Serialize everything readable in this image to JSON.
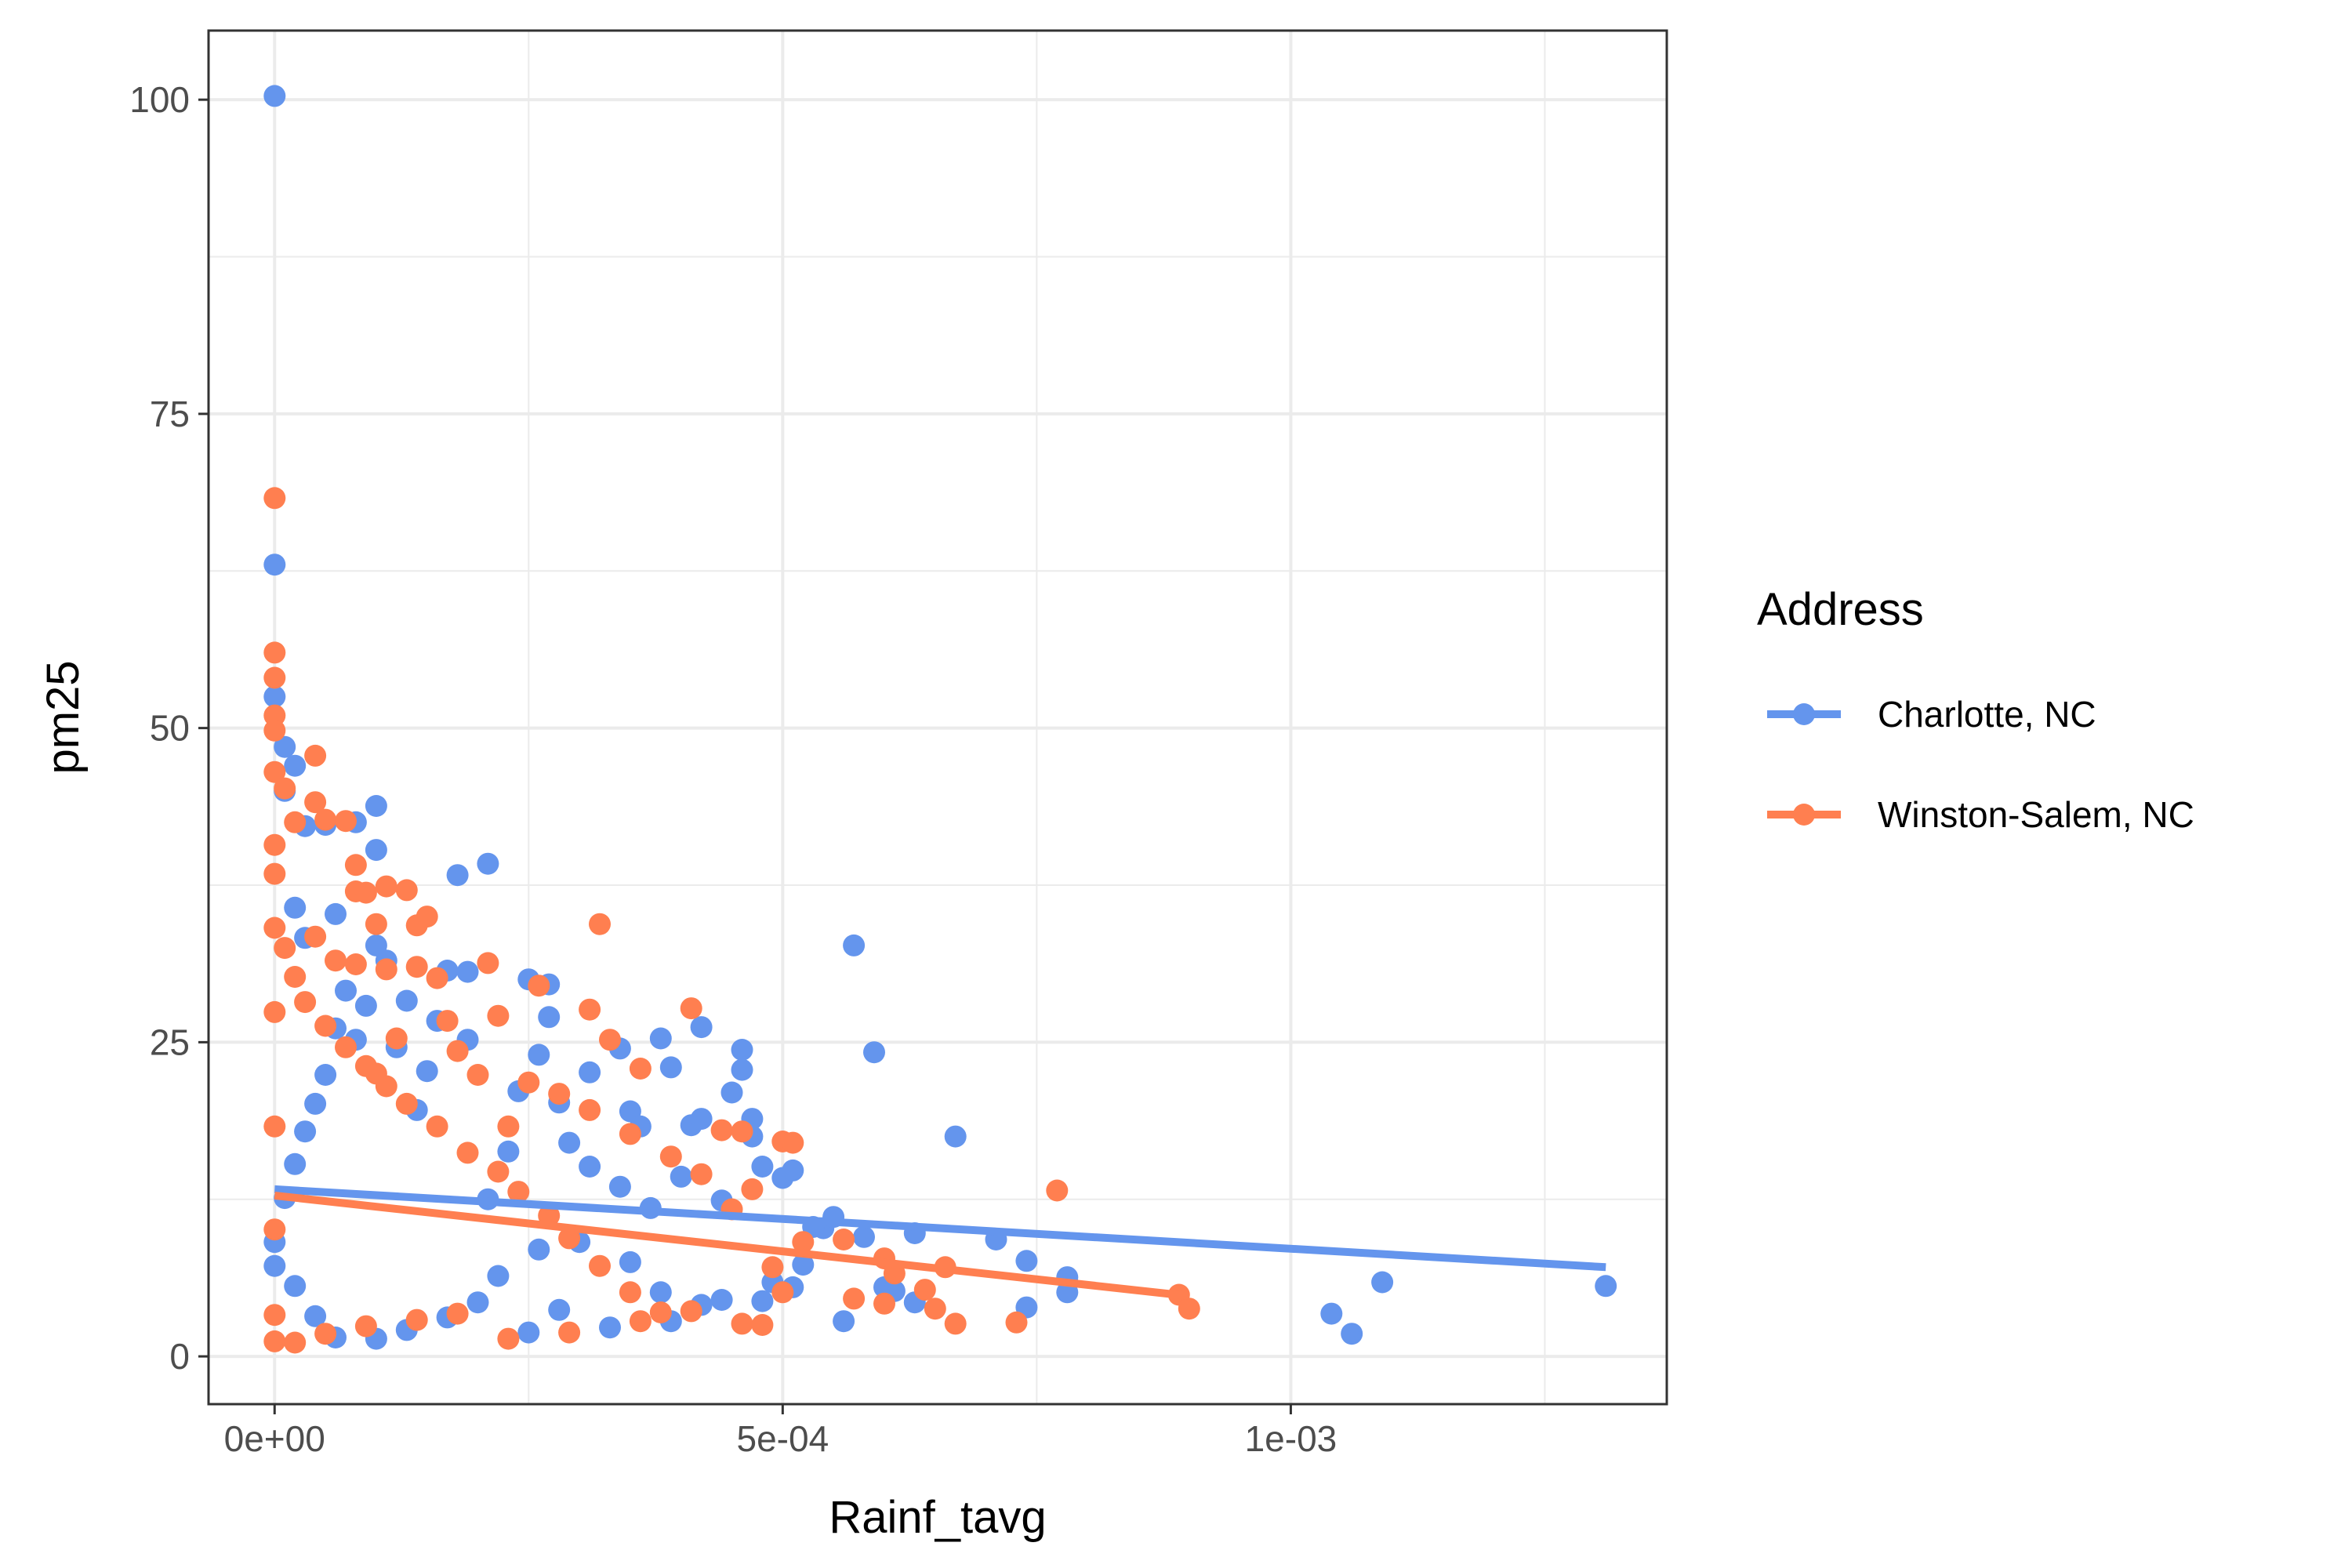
{
  "chart_data": {
    "type": "scatter",
    "title": "",
    "xlabel": "Rainf_tavg",
    "ylabel": "pm25",
    "xlim": [
      -6.5e-05,
      0.00137
    ],
    "ylim": [
      -3.8,
      105.5
    ],
    "x_ticks": [
      {
        "value": 0,
        "label": "0e+00"
      },
      {
        "value": 0.0005,
        "label": "5e-04"
      },
      {
        "value": 0.001,
        "label": "1e-03"
      }
    ],
    "y_ticks": [
      {
        "value": 0,
        "label": "0"
      },
      {
        "value": 25,
        "label": "25"
      },
      {
        "value": 50,
        "label": "50"
      },
      {
        "value": 75,
        "label": "75"
      },
      {
        "value": 100,
        "label": "100"
      }
    ],
    "grid": true,
    "legend": {
      "title": "Address",
      "position": "right"
    },
    "series": [
      {
        "name": "Charlotte, NC",
        "color": "#6495ED",
        "trend_line": [
          [
            0,
            13.3
          ],
          [
            0.00131,
            7.1
          ]
        ],
        "points": [
          [
            0,
            100.3
          ],
          [
            0,
            63
          ],
          [
            0,
            52.5
          ],
          [
            1e-05,
            48.5
          ],
          [
            1e-05,
            45
          ],
          [
            2e-05,
            47
          ],
          [
            3e-05,
            42.2
          ],
          [
            5e-05,
            42.3
          ],
          [
            8e-05,
            42.5
          ],
          [
            0.0001,
            43.8
          ],
          [
            0.0001,
            40.3
          ],
          [
            2e-05,
            35.7
          ],
          [
            6e-05,
            35.2
          ],
          [
            3e-05,
            33.3
          ],
          [
            0.0001,
            32.7
          ],
          [
            0.00011,
            31.5
          ],
          [
            0.00017,
            30.7
          ],
          [
            0.00019,
            30.6
          ],
          [
            0.00018,
            38.3
          ],
          [
            0.00021,
            39.2
          ],
          [
            0.00025,
            30
          ],
          [
            0.00027,
            29.6
          ],
          [
            0.00027,
            27
          ],
          [
            0.00026,
            24
          ],
          [
            0.00031,
            22.6
          ],
          [
            0.00034,
            24.5
          ],
          [
            0.00035,
            19.5
          ],
          [
            0.00036,
            18.3
          ],
          [
            0.00038,
            25.3
          ],
          [
            0.00039,
            23
          ],
          [
            0.00041,
            18.4
          ],
          [
            0.00042,
            18.9
          ],
          [
            0.00042,
            26.2
          ],
          [
            0.00045,
            21
          ],
          [
            0.00046,
            24.4
          ],
          [
            0.00046,
            22.8
          ],
          [
            0.00047,
            18.9
          ],
          [
            0.00047,
            17.5
          ],
          [
            0.00048,
            15.1
          ],
          [
            0.0005,
            14.2
          ],
          [
            0.00051,
            14.8
          ],
          [
            0.00054,
            10.2
          ],
          [
            0.00055,
            11.1
          ],
          [
            0.00057,
            32.7
          ],
          [
            0.00058,
            9.5
          ],
          [
            0.00059,
            24.2
          ],
          [
            0.00056,
            2.8
          ],
          [
            0.0006,
            5.5
          ],
          [
            0.00061,
            5.2
          ],
          [
            0.00063,
            9.8
          ],
          [
            0.00063,
            4.3
          ],
          [
            0.00067,
            17.5
          ],
          [
            0.00071,
            9.3
          ],
          [
            0.00074,
            7.6
          ],
          [
            0.00074,
            3.9
          ],
          [
            0.00078,
            6.3
          ],
          [
            0.00078,
            5.1
          ],
          [
            0.00104,
            3.4
          ],
          [
            0.00106,
            1.8
          ],
          [
            0.00109,
            5.9
          ],
          [
            0.00131,
            5.6
          ],
          [
            0.00033,
            2.3
          ],
          [
            0.00039,
            2.8
          ],
          [
            0.00042,
            4.1
          ],
          [
            0.00044,
            4.5
          ],
          [
            0.00048,
            4.4
          ],
          [
            0.00049,
            5.9
          ],
          [
            0.00051,
            5.5
          ],
          [
            0.00052,
            7.3
          ],
          [
            0.00053,
            10.3
          ],
          [
            0.00044,
            12.4
          ],
          [
            0.0004,
            14.3
          ],
          [
            0.00037,
            11.8
          ],
          [
            0.00034,
            13.5
          ],
          [
            0.00031,
            15.1
          ],
          [
            0.00029,
            17
          ],
          [
            0.00028,
            20.2
          ],
          [
            0.00024,
            21.1
          ],
          [
            0.00023,
            16.3
          ],
          [
            0.00021,
            12.5
          ],
          [
            0.00019,
            25.2
          ],
          [
            0.00016,
            26.7
          ],
          [
            0.00015,
            22.7
          ],
          [
            0.00014,
            19.6
          ],
          [
            0.00013,
            28.3
          ],
          [
            0.00012,
            24.6
          ],
          [
            9e-05,
            27.9
          ],
          [
            8e-05,
            25.2
          ],
          [
            7e-05,
            29.1
          ],
          [
            6e-05,
            26.1
          ],
          [
            5e-05,
            22.4
          ],
          [
            4e-05,
            20.1
          ],
          [
            3e-05,
            17.9
          ],
          [
            2e-05,
            15.3
          ],
          [
            1e-05,
            12.6
          ],
          [
            0,
            9.1
          ],
          [
            0,
            7.2
          ],
          [
            2e-05,
            5.6
          ],
          [
            4e-05,
            3.2
          ],
          [
            6e-05,
            1.5
          ],
          [
            0.0001,
            1.4
          ],
          [
            0.00013,
            2.1
          ],
          [
            0.00017,
            3.1
          ],
          [
            0.0002,
            4.3
          ],
          [
            0.00022,
            6.4
          ],
          [
            0.00026,
            8.5
          ],
          [
            0.0003,
            9.1
          ],
          [
            0.00035,
            7.5
          ],
          [
            0.00038,
            5.1
          ],
          [
            0.00028,
            3.7
          ],
          [
            0.00025,
            1.9
          ]
        ]
      },
      {
        "name": "Winston-Salem, NC",
        "color": "#FF7F50",
        "trend_line": [
          [
            0,
            12.8
          ],
          [
            0.0009,
            4.8
          ]
        ],
        "points": [
          [
            0,
            68.3
          ],
          [
            0,
            56
          ],
          [
            0,
            54
          ],
          [
            0,
            51
          ],
          [
            0,
            49.8
          ],
          [
            0,
            46.5
          ],
          [
            1e-05,
            45.2
          ],
          [
            2e-05,
            42.5
          ],
          [
            4e-05,
            47.8
          ],
          [
            4e-05,
            44.1
          ],
          [
            5e-05,
            42.7
          ],
          [
            7e-05,
            42.6
          ],
          [
            8e-05,
            39.1
          ],
          [
            8e-05,
            37
          ],
          [
            9e-05,
            36.9
          ],
          [
            0.0001,
            34.4
          ],
          [
            0.00011,
            37.4
          ],
          [
            0.00013,
            37.1
          ],
          [
            0.00014,
            34.3
          ],
          [
            0.00015,
            35
          ],
          [
            4e-05,
            33.4
          ],
          [
            6e-05,
            31.5
          ],
          [
            8e-05,
            31.2
          ],
          [
            0.00011,
            30.8
          ],
          [
            0.00014,
            31
          ],
          [
            0.00016,
            30.1
          ],
          [
            0.00021,
            31.3
          ],
          [
            0.00022,
            27.1
          ],
          [
            0.00026,
            29.5
          ],
          [
            0.00032,
            34.4
          ],
          [
            0.00031,
            27.6
          ],
          [
            0.00033,
            25.2
          ],
          [
            0.00036,
            22.9
          ],
          [
            0.00041,
            27.7
          ],
          [
            0.00044,
            18
          ],
          [
            0.00046,
            17.9
          ],
          [
            0.0005,
            17.1
          ],
          [
            0.00051,
            17
          ],
          [
            0.00042,
            14.5
          ],
          [
            0.00039,
            15.9
          ],
          [
            0.00035,
            17.7
          ],
          [
            0.00031,
            19.6
          ],
          [
            0.00028,
            20.9
          ],
          [
            0.00025,
            21.8
          ],
          [
            0.00023,
            18.3
          ],
          [
            0.0002,
            22.4
          ],
          [
            0.00018,
            24.3
          ],
          [
            0.00017,
            26.7
          ],
          [
            0.00012,
            25.3
          ],
          [
            0.0001,
            22.5
          ],
          [
            0.00047,
            13.3
          ],
          [
            0.00045,
            11.7
          ],
          [
            0.00049,
            7.1
          ],
          [
            0.0005,
            5.1
          ],
          [
            0.00052,
            9.1
          ],
          [
            0.00056,
            9.3
          ],
          [
            0.00057,
            4.6
          ],
          [
            0.0006,
            7.8
          ],
          [
            0.00061,
            6.6
          ],
          [
            0.0006,
            4.2
          ],
          [
            0.00064,
            5.3
          ],
          [
            0.00065,
            3.8
          ],
          [
            0.00066,
            7.1
          ],
          [
            0.00067,
            2.6
          ],
          [
            0.00073,
            2.7
          ],
          [
            0.00077,
            13.2
          ],
          [
            0.00089,
            4.9
          ],
          [
            0.0009,
            3.8
          ],
          [
            0.00046,
            2.6
          ],
          [
            0.00048,
            2.5
          ],
          [
            0.00038,
            3.5
          ],
          [
            0.00035,
            5.1
          ],
          [
            0.00032,
            7.2
          ],
          [
            0.00029,
            9.4
          ],
          [
            0.00027,
            11.2
          ],
          [
            0.00024,
            13.1
          ],
          [
            0.00022,
            14.7
          ],
          [
            0.00019,
            16.2
          ],
          [
            0.00016,
            18.3
          ],
          [
            0.00013,
            20.1
          ],
          [
            0.00011,
            21.5
          ],
          [
            9e-05,
            23.1
          ],
          [
            7e-05,
            24.6
          ],
          [
            5e-05,
            26.3
          ],
          [
            3e-05,
            28.2
          ],
          [
            2e-05,
            30.2
          ],
          [
            1e-05,
            32.5
          ],
          [
            0,
            34.1
          ],
          [
            0,
            38.4
          ],
          [
            0,
            40.7
          ],
          [
            0,
            27.4
          ],
          [
            0,
            18.3
          ],
          [
            0,
            10.1
          ],
          [
            0,
            3.3
          ],
          [
            0,
            1.2
          ],
          [
            2e-05,
            1.1
          ],
          [
            5e-05,
            1.8
          ],
          [
            9e-05,
            2.4
          ],
          [
            0.00014,
            2.9
          ],
          [
            0.00018,
            3.4
          ],
          [
            0.00023,
            1.4
          ],
          [
            0.00029,
            1.9
          ],
          [
            0.00036,
            2.8
          ],
          [
            0.00041,
            3.6
          ]
        ]
      }
    ]
  }
}
